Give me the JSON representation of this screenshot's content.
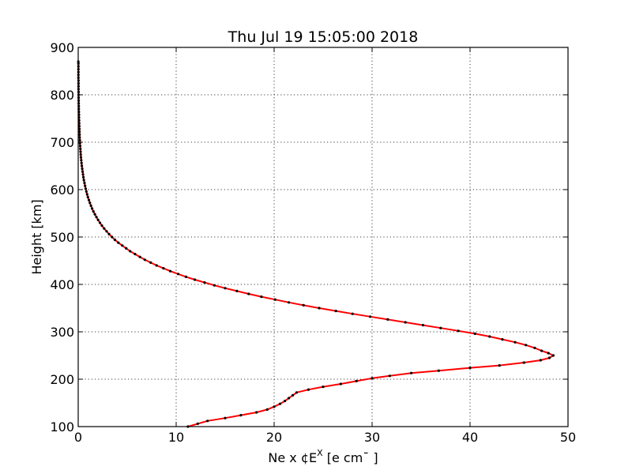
{
  "chart_data": {
    "type": "line",
    "title": "Thu Jul 19 15:05:00 2018",
    "xlabel_main": "Ne x ¢E",
    "xlabel_sup": "X",
    "xlabel_units": " [e cm¯ ]",
    "ylabel": "Height [km]",
    "xlim": [
      0,
      50
    ],
    "ylim": [
      100,
      900
    ],
    "x_ticks": [
      "0",
      "10",
      "20",
      "30",
      "40",
      "50"
    ],
    "y_ticks": [
      "100",
      "200",
      "300",
      "400",
      "500",
      "600",
      "700",
      "800",
      "900"
    ],
    "grid": true,
    "line_color": "#ff0000",
    "marker_color": "#000000",
    "series": [
      {
        "points": [
          [
            11.2,
            100
          ],
          [
            12.2,
            106
          ],
          [
            13.2,
            112
          ],
          [
            15.0,
            118
          ],
          [
            16.6,
            124
          ],
          [
            18.2,
            130
          ],
          [
            19.3,
            136
          ],
          [
            20.0,
            142
          ],
          [
            20.6,
            148
          ],
          [
            21.1,
            154
          ],
          [
            21.5,
            160
          ],
          [
            21.9,
            166
          ],
          [
            22.3,
            172
          ],
          [
            23.5,
            178
          ],
          [
            25.0,
            184
          ],
          [
            26.8,
            190
          ],
          [
            28.4,
            196
          ],
          [
            30.0,
            202
          ],
          [
            31.8,
            207
          ],
          [
            34.0,
            213
          ],
          [
            36.8,
            218
          ],
          [
            40.0,
            224
          ],
          [
            43.0,
            229
          ],
          [
            45.5,
            235
          ],
          [
            47.2,
            240
          ],
          [
            48.1,
            245
          ],
          [
            48.5,
            250
          ],
          [
            48.0,
            255
          ],
          [
            47.3,
            260
          ],
          [
            46.6,
            266
          ],
          [
            45.7,
            272
          ],
          [
            44.6,
            278
          ],
          [
            43.3,
            284
          ],
          [
            42.0,
            290
          ],
          [
            40.5,
            296
          ],
          [
            38.8,
            302
          ],
          [
            37.0,
            308
          ],
          [
            35.2,
            314
          ],
          [
            33.4,
            320
          ],
          [
            31.6,
            326
          ],
          [
            29.8,
            332
          ],
          [
            28.0,
            338
          ],
          [
            26.3,
            344
          ],
          [
            24.6,
            350
          ],
          [
            23.0,
            356
          ],
          [
            21.5,
            362
          ],
          [
            20.1,
            368
          ],
          [
            18.7,
            374
          ],
          [
            17.4,
            380
          ],
          [
            16.2,
            386
          ],
          [
            15.0,
            392
          ],
          [
            13.9,
            398
          ],
          [
            12.9,
            404
          ],
          [
            11.9,
            410
          ],
          [
            11.0,
            416
          ],
          [
            10.2,
            422
          ],
          [
            9.4,
            428
          ],
          [
            8.7,
            434
          ],
          [
            8.0,
            440
          ],
          [
            7.4,
            446
          ],
          [
            6.8,
            452
          ],
          [
            6.3,
            458
          ],
          [
            5.8,
            464
          ],
          [
            5.3,
            470
          ],
          [
            4.9,
            476
          ],
          [
            4.5,
            482
          ],
          [
            4.1,
            488
          ],
          [
            3.75,
            494
          ],
          [
            3.45,
            500
          ],
          [
            3.15,
            506
          ],
          [
            2.9,
            512
          ],
          [
            2.65,
            518
          ],
          [
            2.42,
            524
          ],
          [
            2.22,
            530
          ],
          [
            2.03,
            536
          ],
          [
            1.86,
            542
          ],
          [
            1.7,
            548
          ],
          [
            1.55,
            554
          ],
          [
            1.42,
            560
          ],
          [
            1.3,
            566
          ],
          [
            1.19,
            572
          ],
          [
            1.09,
            578
          ],
          [
            0.99,
            584
          ],
          [
            0.91,
            590
          ],
          [
            0.83,
            596
          ],
          [
            0.76,
            602
          ],
          [
            0.7,
            608
          ],
          [
            0.64,
            614
          ],
          [
            0.58,
            620
          ],
          [
            0.53,
            626
          ],
          [
            0.49,
            632
          ],
          [
            0.45,
            638
          ],
          [
            0.41,
            644
          ],
          [
            0.37,
            650
          ],
          [
            0.34,
            656
          ],
          [
            0.31,
            662
          ],
          [
            0.28,
            668
          ],
          [
            0.26,
            674
          ],
          [
            0.24,
            680
          ],
          [
            0.22,
            686
          ],
          [
            0.2,
            692
          ],
          [
            0.18,
            698
          ],
          [
            0.17,
            704
          ],
          [
            0.15,
            710
          ],
          [
            0.14,
            716
          ],
          [
            0.13,
            722
          ],
          [
            0.12,
            728
          ],
          [
            0.11,
            734
          ],
          [
            0.1,
            740
          ],
          [
            0.09,
            746
          ],
          [
            0.08,
            752
          ],
          [
            0.08,
            758
          ],
          [
            0.07,
            764
          ],
          [
            0.06,
            770
          ],
          [
            0.06,
            776
          ],
          [
            0.05,
            782
          ],
          [
            0.05,
            788
          ],
          [
            0.04,
            794
          ],
          [
            0.04,
            800
          ],
          [
            0.04,
            806
          ],
          [
            0.03,
            812
          ],
          [
            0.03,
            818
          ],
          [
            0.03,
            824
          ],
          [
            0.03,
            830
          ],
          [
            0.02,
            836
          ],
          [
            0.02,
            842
          ],
          [
            0.02,
            848
          ],
          [
            0.02,
            854
          ],
          [
            0.02,
            860
          ],
          [
            0.02,
            866
          ],
          [
            0.01,
            870
          ]
        ]
      }
    ]
  }
}
